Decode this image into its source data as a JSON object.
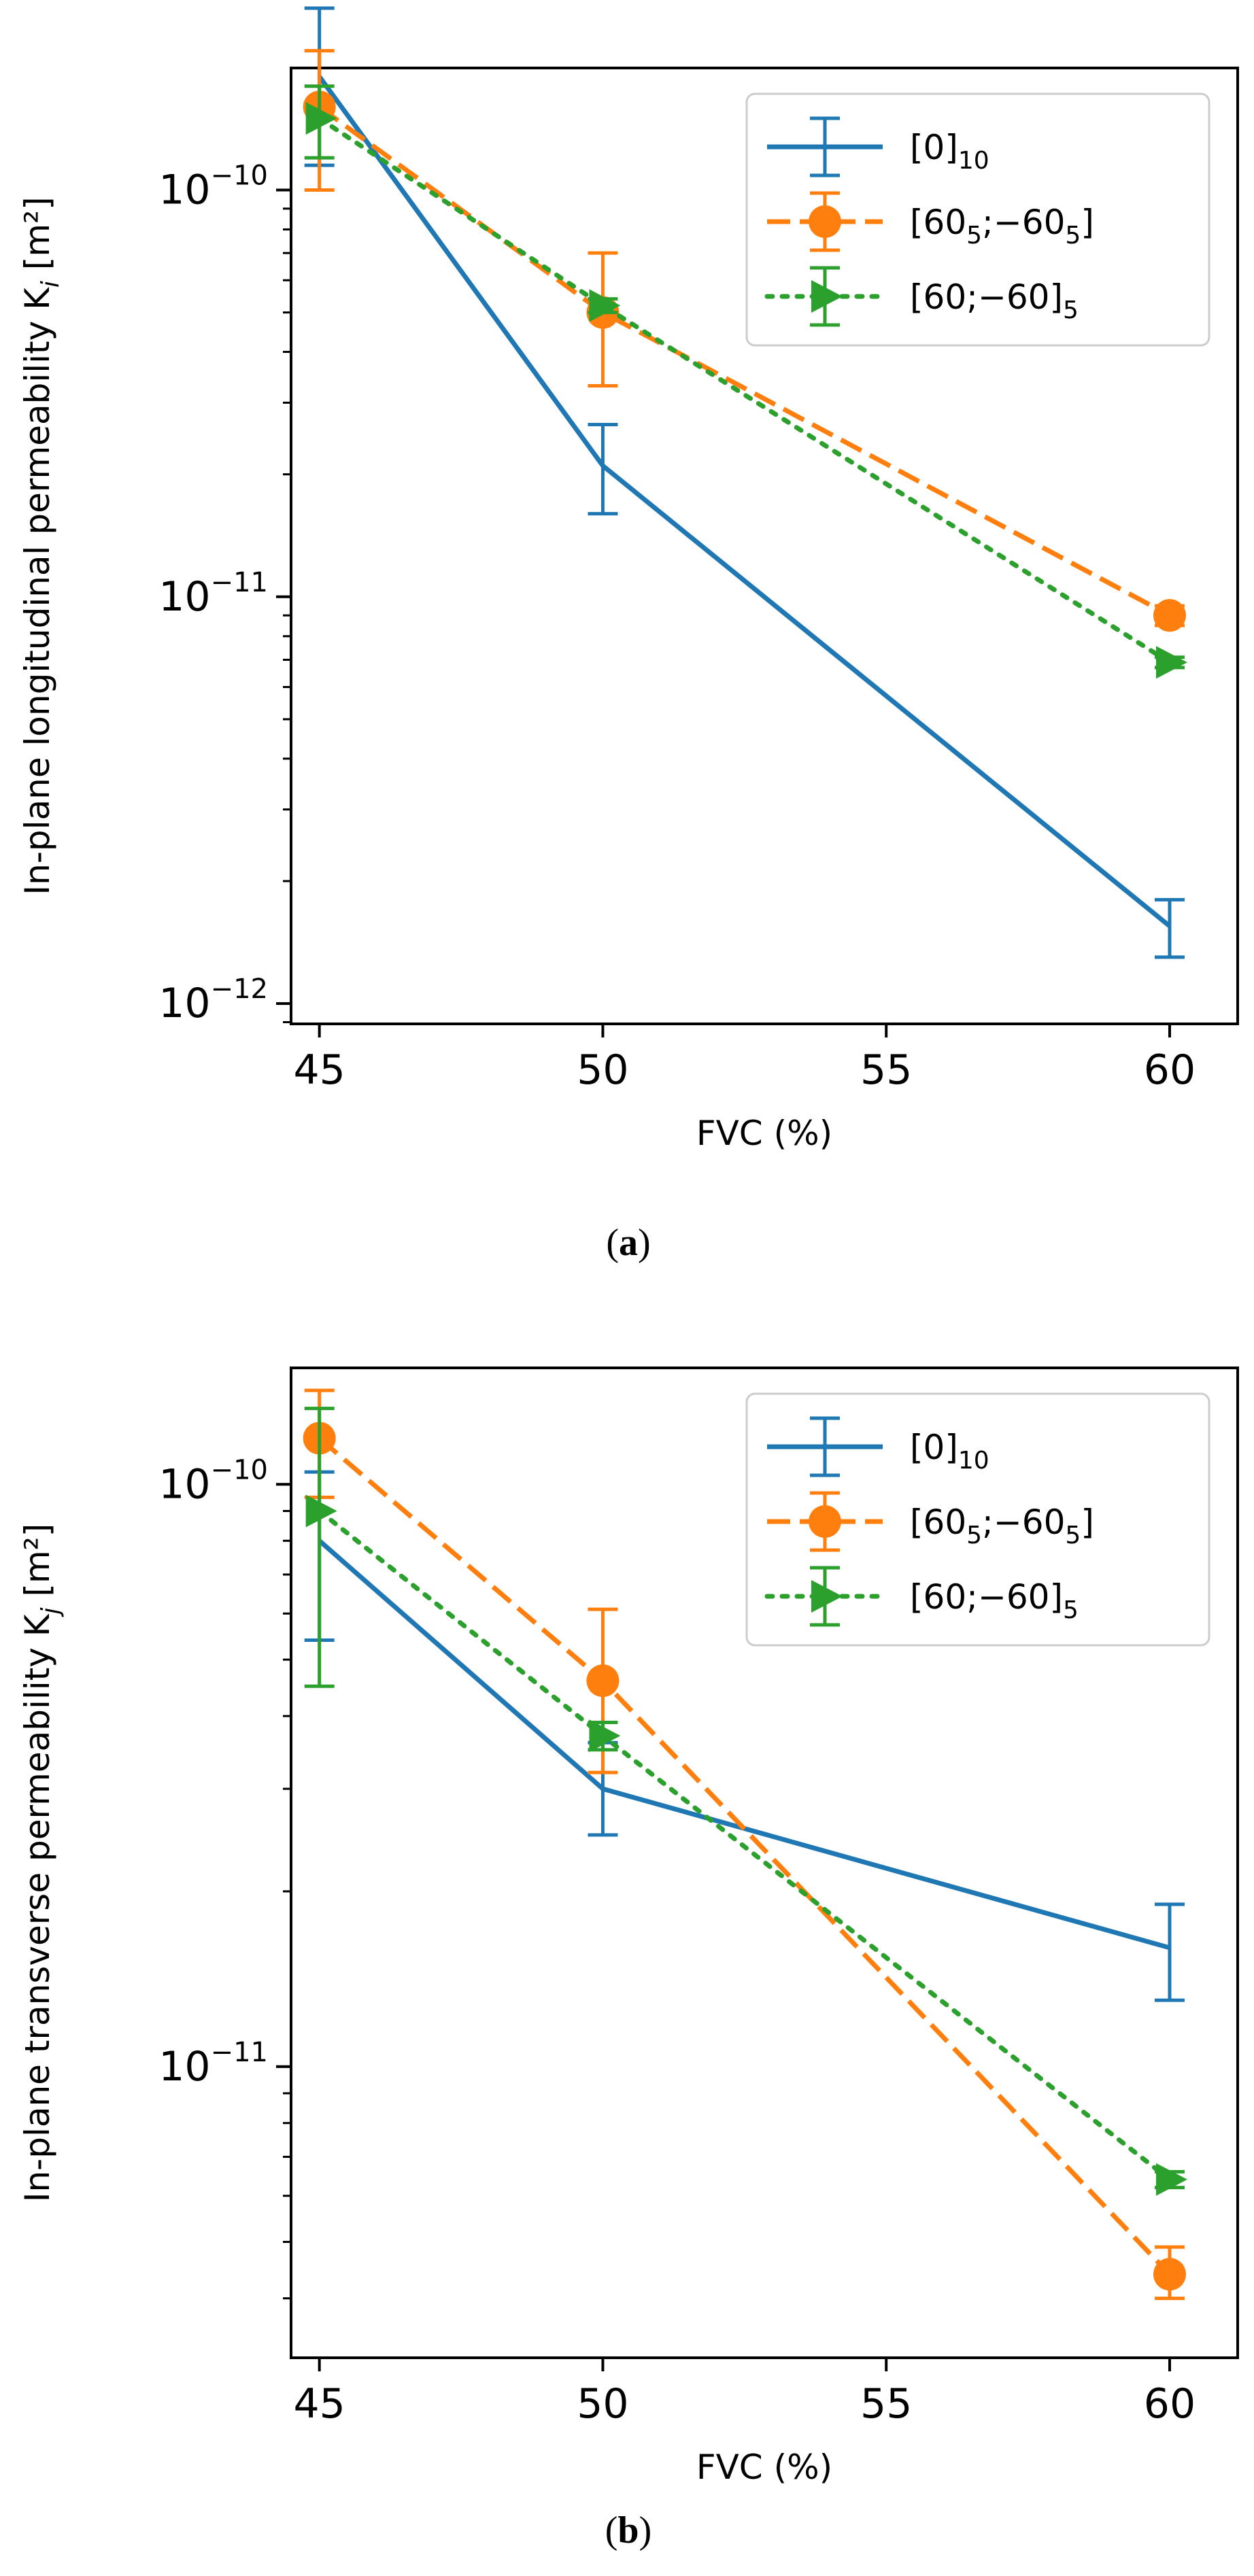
{
  "chart_data": [
    {
      "type": "line",
      "panel_label": "a",
      "xlabel": "FVC (%)",
      "ylabel": "In-plane longitudinal permeability K",
      "ylabel_sub": "i",
      "ylabel_unit": " [m²]",
      "yscale": "log",
      "xlim": [
        44.5,
        61.2
      ],
      "ylim_log10": [
        -12.05,
        -9.7
      ],
      "x_ticks": [
        45,
        50,
        55,
        60
      ],
      "y_ticks": [
        {
          "base": "10",
          "exp": "−10",
          "log10": -10
        },
        {
          "base": "10",
          "exp": "−11",
          "log10": -11
        },
        {
          "base": "10",
          "exp": "−12",
          "log10": -12
        }
      ],
      "legend": "top-right",
      "series": [
        {
          "name": "[0]",
          "sub": "10",
          "rest": "",
          "color": "#1f77b4",
          "linestyle": "solid",
          "marker": "none",
          "x": [
            45,
            50,
            60
          ],
          "y": [
            1.9e-10,
            2.1e-11,
            1.55e-12
          ],
          "yerr_low": [
            1.15e-10,
            1.6e-11,
            1.3e-12
          ],
          "yerr_high": [
            2.8e-10,
            2.65e-11,
            1.8e-12
          ]
        },
        {
          "name": "[60",
          "sub": "5",
          "rest": ";−60",
          "sub2": "5",
          "tail": "]",
          "color": "#ff7f0e",
          "linestyle": "dashed",
          "marker": "circle",
          "x": [
            45,
            50,
            60
          ],
          "y": [
            1.6e-10,
            5e-11,
            9e-12
          ],
          "yerr_low": [
            1e-10,
            3.3e-11,
            8.5e-12
          ],
          "yerr_high": [
            2.2e-10,
            7e-11,
            9.5e-12
          ]
        },
        {
          "name": "[60;−60]",
          "sub": "5",
          "rest": "",
          "color": "#2ca02c",
          "linestyle": "dotted",
          "marker": "triangle-right",
          "x": [
            45,
            50,
            60
          ],
          "y": [
            1.5e-10,
            5.2e-11,
            6.9e-12
          ],
          "yerr_low": [
            1.2e-10,
            5e-11,
            6.7e-12
          ],
          "yerr_high": [
            1.8e-10,
            5.4e-11,
            7.1e-12
          ]
        }
      ]
    },
    {
      "type": "line",
      "panel_label": "b",
      "xlabel": "FVC (%)",
      "ylabel": "In-plane transverse permeability K",
      "ylabel_sub": "j",
      "ylabel_unit": " [m²]",
      "yscale": "log",
      "xlim": [
        44.5,
        61.2
      ],
      "ylim_log10": [
        -11.5,
        -9.8
      ],
      "x_ticks": [
        45,
        50,
        55,
        60
      ],
      "y_ticks": [
        {
          "base": "10",
          "exp": "−10",
          "log10": -10
        },
        {
          "base": "10",
          "exp": "−11",
          "log10": -11
        }
      ],
      "legend": "top-right",
      "series": [
        {
          "name": "[0]",
          "sub": "10",
          "rest": "",
          "color": "#1f77b4",
          "linestyle": "solid",
          "marker": "none",
          "x": [
            45,
            50,
            60
          ],
          "y": [
            8e-11,
            3e-11,
            1.6e-11
          ],
          "yerr_low": [
            5.4e-11,
            2.5e-11,
            1.3e-11
          ],
          "yerr_high": [
            1.05e-10,
            3.6e-11,
            1.9e-11
          ]
        },
        {
          "name": "[60",
          "sub": "5",
          "rest": ";−60",
          "sub2": "5",
          "tail": "]",
          "color": "#ff7f0e",
          "linestyle": "dashed",
          "marker": "circle",
          "x": [
            45,
            50,
            60
          ],
          "y": [
            1.2e-10,
            4.6e-11,
            4.4e-12
          ],
          "yerr_low": [
            9.5e-11,
            3.2e-11,
            4e-12
          ],
          "yerr_high": [
            1.45e-10,
            6.1e-11,
            4.9e-12
          ]
        },
        {
          "name": "[60;−60]",
          "sub": "5",
          "rest": "",
          "color": "#2ca02c",
          "linestyle": "dotted",
          "marker": "triangle-right",
          "x": [
            45,
            50,
            60
          ],
          "y": [
            9e-11,
            3.7e-11,
            6.4e-12
          ],
          "yerr_low": [
            4.5e-11,
            3.5e-11,
            6.2e-12
          ],
          "yerr_high": [
            1.35e-10,
            3.9e-11,
            6.6e-12
          ]
        }
      ]
    }
  ]
}
